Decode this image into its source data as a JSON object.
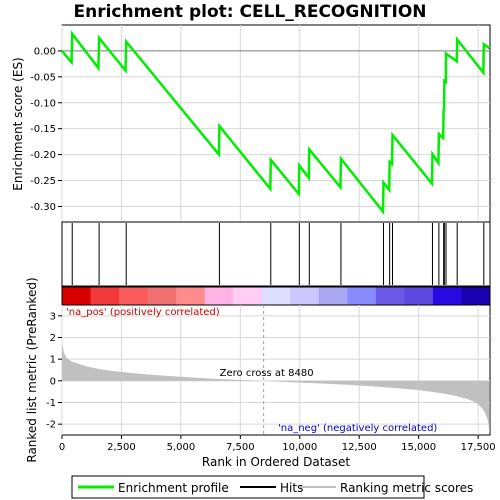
{
  "chart_data": {
    "type": "line",
    "title": "Enrichment plot: CELL_RECOGNITION",
    "xlabel": "Rank in Ordered Dataset",
    "es_ylabel": "Enrichment score (ES)",
    "metric_ylabel": "Ranked list metric (PreRanked)",
    "xlim": [
      0,
      18000
    ],
    "es_ylim": [
      -0.33,
      0.05
    ],
    "metric_ylim": [
      -2.5,
      3.5
    ],
    "x_ticks": [
      0,
      2500,
      5000,
      7500,
      10000,
      12500,
      15000,
      17500
    ],
    "x_tick_labels": [
      "0",
      "2,500",
      "5,000",
      "7,500",
      "10,000",
      "12,500",
      "15,000",
      "17,500"
    ],
    "es_ticks": [
      0.0,
      -0.05,
      -0.1,
      -0.15,
      -0.2,
      -0.25,
      -0.3
    ],
    "es_tick_labels": [
      "0.00",
      "-0.05",
      "-0.10",
      "-0.15",
      "-0.20",
      "-0.25",
      "-0.30"
    ],
    "metric_ticks": [
      3,
      2,
      1,
      0,
      -1,
      -2
    ],
    "metric_tick_labels": [
      "3",
      "2",
      "1",
      "0",
      "-1",
      "-2"
    ],
    "hits": [
      430,
      1560,
      2700,
      6620,
      8780,
      9980,
      10400,
      11730,
      13520,
      13780,
      13900,
      15580,
      15850,
      16050,
      16080,
      16150,
      16620,
      17740
    ],
    "es_profile": {
      "x": [
        0,
        400,
        430,
        1530,
        1560,
        2670,
        2700,
        6600,
        6620,
        8760,
        8780,
        9960,
        9980,
        10380,
        10400,
        11710,
        11730,
        13500,
        13520,
        13760,
        13780,
        13880,
        13900,
        15560,
        15580,
        15830,
        15850,
        16030,
        16050,
        16070,
        16080,
        16140,
        16150,
        16600,
        16620,
        17720,
        17740,
        17990
      ],
      "y": [
        0.0,
        -0.022,
        0.033,
        -0.033,
        0.025,
        -0.038,
        0.018,
        -0.2,
        -0.145,
        -0.266,
        -0.21,
        -0.276,
        -0.221,
        -0.245,
        -0.19,
        -0.263,
        -0.208,
        -0.31,
        -0.254,
        -0.268,
        -0.214,
        -0.218,
        -0.162,
        -0.256,
        -0.199,
        -0.216,
        -0.16,
        -0.168,
        -0.113,
        -0.112,
        -0.058,
        -0.06,
        -0.005,
        -0.02,
        0.022,
        -0.042,
        0.013,
        0.005
      ]
    },
    "metric_curve": {
      "x": [
        0,
        80,
        200,
        400,
        700,
        1000,
        1500,
        2000,
        3000,
        4000,
        5000,
        6000,
        7000,
        8000,
        8480,
        9000,
        10000,
        11000,
        12000,
        13000,
        14000,
        15000,
        15500,
        16000,
        16500,
        17000,
        17300,
        17500,
        17700,
        17800,
        17900,
        17950,
        17990
      ],
      "y": [
        1.75,
        1.3,
        1.05,
        0.9,
        0.78,
        0.68,
        0.56,
        0.47,
        0.35,
        0.26,
        0.19,
        0.12,
        0.06,
        0.02,
        0.0,
        -0.03,
        -0.08,
        -0.13,
        -0.18,
        -0.25,
        -0.33,
        -0.43,
        -0.5,
        -0.58,
        -0.68,
        -0.82,
        -0.95,
        -1.08,
        -1.3,
        -1.5,
        -1.8,
        -2.1,
        -2.45
      ]
    },
    "gradient_colors": [
      "#d90000",
      "#f23a3a",
      "#fa5c5c",
      "#f07070",
      "#ff8c8c",
      "#ffb3e6",
      "#ffcdf5",
      "#ddddff",
      "#c9c9ff",
      "#a8a8f0",
      "#8a8aff",
      "#6a5ae8",
      "#5a4ae0",
      "#2a0ae0",
      "#1a00b0"
    ],
    "zero_cross": 8480,
    "zero_cross_label": "Zero cross at 8480",
    "pos_label": "'na_pos' (positively correlated)",
    "neg_label": "'na_neg' (negatively correlated)",
    "legend": [
      "Enrichment profile",
      "Hits",
      "Ranking metric scores"
    ],
    "colors": {
      "profile": "#00ee00",
      "hit": "#000000",
      "metric_fill": "#c0c0c0",
      "pos_text": "#cc0000",
      "neg_text": "#0000cc",
      "zero_line": "#a0a0a0"
    }
  }
}
